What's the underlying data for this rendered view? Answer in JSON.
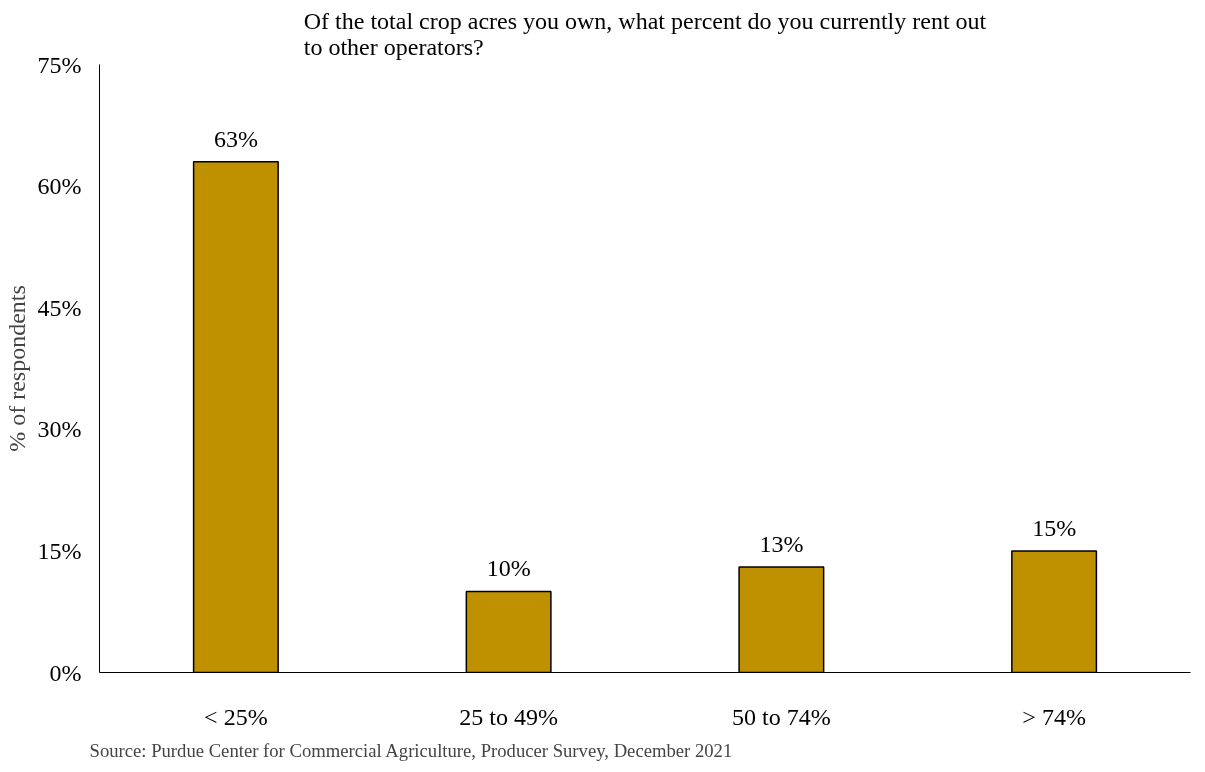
{
  "chart_data": {
    "type": "bar",
    "title": "Of the total crop acres you own, what percent do you currently rent out to other operators?",
    "ylabel": "% of respondents",
    "categories": [
      "< 25%",
      "25 to 49%",
      "50 to 74%",
      "> 74%"
    ],
    "values": [
      63,
      10,
      13,
      15
    ],
    "value_labels": [
      "63%",
      "10%",
      "13%",
      "15%"
    ],
    "color": "#bf9000",
    "ylim": [
      0,
      75
    ],
    "yticks": [
      {
        "value": 0,
        "label": "0%"
      },
      {
        "value": 15,
        "label": "15%"
      },
      {
        "value": 30,
        "label": "30%"
      },
      {
        "value": 45,
        "label": "45%"
      },
      {
        "value": 60,
        "label": "60%"
      },
      {
        "value": 75,
        "label": "75%"
      }
    ],
    "grid": false,
    "annotations": [
      "Source: Purdue Center for Commercial Agriculture, Producer Survey, December 2021"
    ]
  }
}
